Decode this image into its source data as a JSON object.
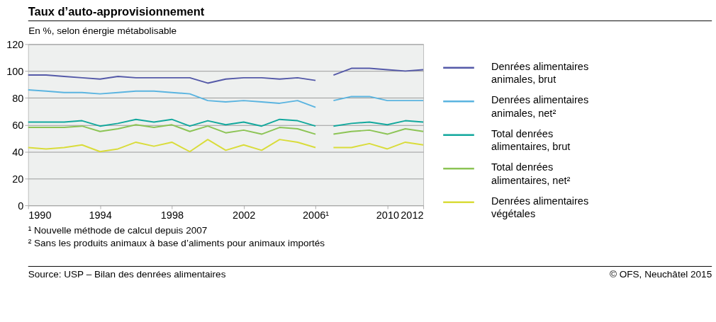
{
  "chart_data": {
    "type": "line",
    "title": "Taux d’auto-approvisionnement",
    "ylabel": "En %, selon énergie métabolisable",
    "x": [
      1990,
      1991,
      1992,
      1993,
      1994,
      1995,
      1996,
      1997,
      1998,
      1999,
      2000,
      2001,
      2002,
      2003,
      2004,
      2005,
      2006,
      2006.5,
      2007,
      2008,
      2009,
      2010,
      2011,
      2012
    ],
    "series": [
      {
        "name": "Denrées alimentaires animales, brut",
        "color": "#5459a8",
        "values": [
          97,
          97,
          96,
          95,
          94,
          96,
          95,
          95,
          95,
          95,
          91,
          94,
          95,
          95,
          94,
          95,
          93,
          null,
          97,
          102,
          102,
          101,
          100,
          101
        ]
      },
      {
        "name": "Denrées alimentaires animales, net²",
        "color": "#5ab4e0",
        "values": [
          86,
          85,
          84,
          84,
          83,
          84,
          85,
          85,
          84,
          83,
          78,
          77,
          78,
          77,
          76,
          78,
          73,
          null,
          78,
          81,
          81,
          78,
          78,
          78
        ]
      },
      {
        "name": "Total denrées alimentaires, brut",
        "color": "#12a89d",
        "values": [
          62,
          62,
          62,
          63,
          59,
          61,
          64,
          62,
          64,
          59,
          63,
          60,
          62,
          59,
          64,
          63,
          59,
          null,
          59,
          61,
          62,
          60,
          63,
          62
        ]
      },
      {
        "name": "Total denrées alimentaires, net²",
        "color": "#8cc455",
        "values": [
          58,
          58,
          58,
          59,
          55,
          57,
          60,
          58,
          60,
          55,
          59,
          54,
          56,
          53,
          58,
          57,
          53,
          null,
          53,
          55,
          56,
          53,
          57,
          55
        ]
      },
      {
        "name": "Denrées alimentaires végétales",
        "color": "#d9dc3a",
        "values": [
          43,
          42,
          43,
          45,
          40,
          42,
          47,
          44,
          47,
          40,
          49,
          41,
          45,
          41,
          49,
          47,
          43,
          null,
          43,
          43,
          46,
          42,
          47,
          45
        ]
      }
    ],
    "xlim": [
      1990,
      2012
    ],
    "xticks": [
      1990,
      1994,
      1998,
      2002,
      {
        "value": 2006,
        "label": "2006¹"
      },
      2010,
      2012
    ],
    "ylim": [
      0,
      120
    ],
    "yticks": [
      0,
      20,
      40,
      60,
      80,
      100,
      120
    ],
    "grid": "y",
    "legend": "right",
    "marker": "none",
    "line_style": "solid",
    "annotations": [
      "¹ Nouvelle méthode de calcul depuis 2007",
      "² Sans les produits animaux à base d’aliments pour animaux importés",
      "Source: USP – Bilan des denrées alimentaires",
      "© OFS, Neuchâtel 2015"
    ]
  }
}
